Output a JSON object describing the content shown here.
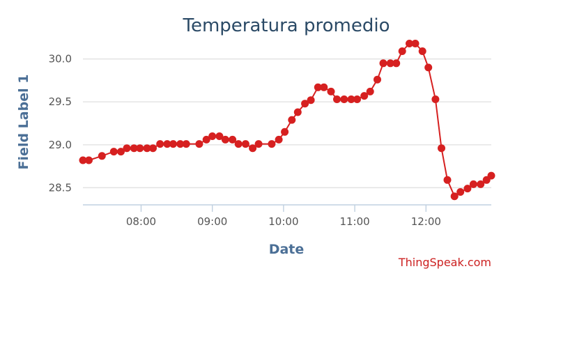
{
  "chart_data": {
    "type": "line",
    "title": "Temperatura promedio",
    "xlabel": "Date",
    "ylabel": "Field Label 1",
    "credit": "ThingSpeak.com",
    "xlim": [
      "07:11",
      "12:55"
    ],
    "ylim": [
      28.3,
      30.2
    ],
    "x_ticks": [
      "08:00",
      "09:00",
      "10:00",
      "11:00",
      "12:00"
    ],
    "y_ticks": [
      "28.5",
      "29.0",
      "29.5",
      "30.0"
    ],
    "grid": true,
    "legend": "none",
    "line_color": "#d62020",
    "series": [
      {
        "x": [
          "07:11",
          "07:16",
          "07:27",
          "07:37",
          "07:43",
          "07:48",
          "07:54",
          "07:59",
          "08:05",
          "08:10",
          "08:16",
          "08:22",
          "08:27",
          "08:33",
          "08:38",
          "08:49",
          "08:55",
          "09:00",
          "09:06",
          "09:11",
          "09:17",
          "09:22",
          "09:28",
          "09:34",
          "09:39",
          "09:50",
          "09:56",
          "10:01",
          "10:07",
          "10:12",
          "10:18",
          "10:23",
          "10:29",
          "10:34",
          "10:40",
          "10:45",
          "10:51",
          "10:57",
          "11:02",
          "11:08",
          "11:13",
          "11:19",
          "11:24",
          "11:30",
          "11:35",
          "11:40",
          "11:46",
          "11:51",
          "11:57",
          "12:02",
          "12:08",
          "12:13",
          "12:18",
          "12:24",
          "12:29",
          "12:35",
          "12:40",
          "12:46",
          "12:51",
          "12:55"
        ],
        "values": [
          28.82,
          28.82,
          28.87,
          28.92,
          28.92,
          28.96,
          28.96,
          28.96,
          28.96,
          28.96,
          29.01,
          29.01,
          29.01,
          29.01,
          29.01,
          29.01,
          29.06,
          29.1,
          29.1,
          29.06,
          29.06,
          29.01,
          29.01,
          28.96,
          29.01,
          29.01,
          29.06,
          29.15,
          29.29,
          29.38,
          29.48,
          29.52,
          29.67,
          29.67,
          29.62,
          29.53,
          29.53,
          29.53,
          29.53,
          29.57,
          29.62,
          29.76,
          29.95,
          29.95,
          29.95,
          30.09,
          30.18,
          30.18,
          30.09,
          29.9,
          29.53,
          28.96,
          28.59,
          28.4,
          28.45,
          28.49,
          28.54,
          28.54,
          28.59,
          28.64
        ]
      }
    ]
  }
}
